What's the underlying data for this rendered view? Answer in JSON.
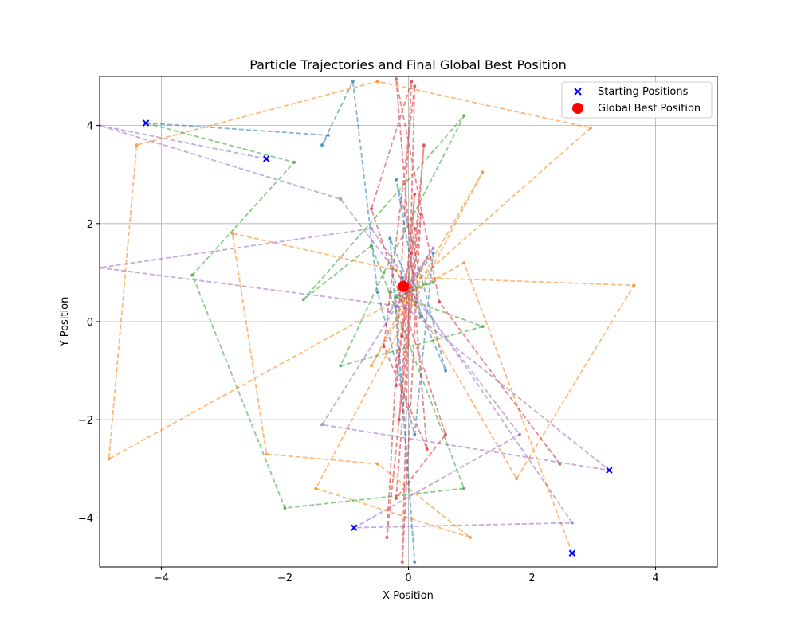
{
  "chart_data": {
    "type": "line",
    "title": "Particle Trajectories and Final Global Best Position",
    "xlabel": "X Position",
    "ylabel": "Y Position",
    "xlim": [
      -5,
      5
    ],
    "ylim": [
      -5,
      5
    ],
    "xticks": [
      -4,
      -2,
      0,
      2,
      4
    ],
    "yticks": [
      -4,
      -2,
      0,
      2,
      4
    ],
    "grid": true,
    "legend_position": "top-right",
    "legend": [
      {
        "label": "Starting Positions",
        "marker": "x",
        "color": "#0000ff"
      },
      {
        "label": "Global Best Position",
        "marker": "circle",
        "color": "#ff0000"
      }
    ],
    "starting_positions": [
      {
        "x": -4.25,
        "y": 4.05
      },
      {
        "x": -2.3,
        "y": 3.32
      },
      {
        "x": -0.88,
        "y": -4.2
      },
      {
        "x": 2.65,
        "y": -4.72
      },
      {
        "x": 3.25,
        "y": -3.03
      }
    ],
    "global_best": {
      "x": -0.08,
      "y": 0.72
    },
    "series": [
      {
        "color": "#1f77b4",
        "points": [
          [
            -4.25,
            4.05
          ],
          [
            -1.3,
            3.8
          ],
          [
            -1.4,
            3.6
          ],
          [
            -0.9,
            4.9
          ],
          [
            -0.5,
            0.6
          ],
          [
            0.1,
            -2.3
          ],
          [
            0.4,
            1.4
          ],
          [
            -0.2,
            0.3
          ],
          [
            0.1,
            -4.9
          ],
          [
            -0.3,
            1.7
          ],
          [
            0.6,
            -1.0
          ],
          [
            -0.2,
            2.9
          ],
          [
            0.2,
            0.1
          ],
          [
            -0.1,
            0.9
          ],
          [
            -0.05,
            0.7
          ],
          [
            -0.08,
            0.72
          ]
        ]
      },
      {
        "color": "#ff7f0e",
        "points": [
          [
            2.65,
            -4.72
          ],
          [
            0.9,
            1.2
          ],
          [
            -4.85,
            -2.8
          ],
          [
            -4.4,
            3.6
          ],
          [
            -0.5,
            4.9
          ],
          [
            2.95,
            3.95
          ],
          [
            0.2,
            0.9
          ],
          [
            3.65,
            0.74
          ],
          [
            1.75,
            -3.2
          ],
          [
            -0.2,
            1.05
          ],
          [
            -2.85,
            1.8
          ],
          [
            -2.3,
            -2.7
          ],
          [
            -0.5,
            -2.9
          ],
          [
            1.0,
            -4.4
          ],
          [
            -1.5,
            -3.4
          ],
          [
            1.2,
            3.05
          ],
          [
            -0.6,
            -0.9
          ],
          [
            0.3,
            1.3
          ],
          [
            -0.1,
            0.4
          ],
          [
            -0.08,
            0.72
          ]
        ]
      },
      {
        "color": "#2ca02c",
        "points": [
          [
            -4.25,
            4.05
          ],
          [
            -1.85,
            3.25
          ],
          [
            -3.5,
            0.95
          ],
          [
            -2.0,
            -3.8
          ],
          [
            0.9,
            -3.4
          ],
          [
            -0.6,
            1.55
          ],
          [
            -1.7,
            0.45
          ],
          [
            0.9,
            4.2
          ],
          [
            -0.4,
            1.0
          ],
          [
            -1.1,
            -0.9
          ],
          [
            1.2,
            -0.1
          ],
          [
            -0.3,
            0.6
          ],
          [
            0.4,
            0.8
          ],
          [
            -0.2,
            0.5
          ],
          [
            -0.08,
            0.72
          ]
        ]
      },
      {
        "color": "#d62728",
        "points": [
          [
            2.45,
            -2.9
          ],
          [
            0.5,
            0.4
          ],
          [
            -0.2,
            4.95
          ],
          [
            0.3,
            -2.6
          ],
          [
            -0.4,
            -0.5
          ],
          [
            0.1,
            4.8
          ],
          [
            -0.1,
            -4.9
          ],
          [
            0.2,
            2.2
          ],
          [
            -0.35,
            -4.4
          ],
          [
            0.05,
            4.9
          ],
          [
            -0.6,
            2.3
          ],
          [
            0.6,
            -2.3
          ],
          [
            -0.2,
            -3.6
          ],
          [
            0.25,
            3.6
          ],
          [
            -0.15,
            -2.0
          ],
          [
            0.1,
            2.6
          ],
          [
            -0.2,
            -1.3
          ],
          [
            0.1,
            1.9
          ],
          [
            -0.1,
            -0.3
          ],
          [
            0.05,
            1.4
          ],
          [
            -0.08,
            0.72
          ]
        ]
      },
      {
        "color": "#9467bd",
        "points": [
          [
            -2.3,
            3.32
          ],
          [
            -5.0,
            4.0
          ],
          [
            -1.1,
            2.5
          ],
          [
            1.8,
            -2.3
          ],
          [
            -0.88,
            -4.2
          ],
          [
            2.65,
            -4.1
          ],
          [
            -0.6,
            1.9
          ],
          [
            -5.0,
            1.1
          ],
          [
            -0.05,
            0.3
          ],
          [
            3.25,
            -3.03
          ],
          [
            -1.4,
            -2.1
          ],
          [
            0.4,
            1.5
          ],
          [
            -0.3,
            0.2
          ],
          [
            -0.08,
            0.72
          ]
        ]
      }
    ]
  }
}
